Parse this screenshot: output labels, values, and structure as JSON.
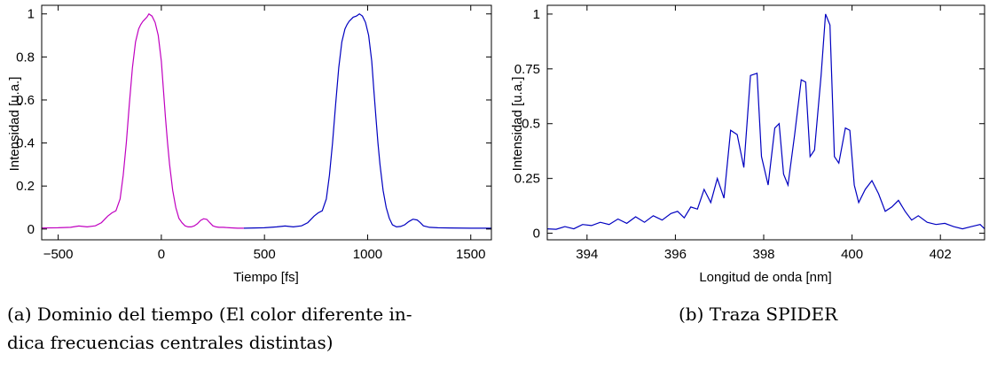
{
  "chart_data": [
    {
      "type": "line",
      "xlabel": "Tiempo [fs]",
      "ylabel": "Intensidad [u.a.]",
      "xlim": [
        -580,
        1600
      ],
      "ylim": [
        -0.05,
        1.04
      ],
      "xticks": [
        -500,
        0,
        500,
        1000,
        1500
      ],
      "xtick_labels": [
        "−500",
        "0",
        "500",
        "1000",
        "1500"
      ],
      "yticks": [
        0,
        0.2,
        0.4,
        0.6,
        0.8,
        1
      ],
      "ytick_labels": [
        "0",
        "0.2",
        "0.4",
        "0.6",
        "0.8",
        "1"
      ],
      "grid": false,
      "series": [
        {
          "color": "#c000c0",
          "x": [
            -580,
            -500,
            -440,
            -400,
            -360,
            -320,
            -290,
            -260,
            -240,
            -220,
            -200,
            -185,
            -170,
            -155,
            -140,
            -125,
            -110,
            -100,
            -90,
            -80,
            -70,
            -60,
            -45,
            -30,
            -15,
            0,
            10,
            20,
            30,
            40,
            55,
            70,
            85,
            100,
            115,
            130,
            145,
            160,
            175,
            190,
            205,
            220,
            235,
            250,
            265,
            280,
            300,
            330,
            370,
            400
          ],
          "y": [
            0.005,
            0.006,
            0.008,
            0.014,
            0.01,
            0.015,
            0.03,
            0.06,
            0.075,
            0.085,
            0.14,
            0.25,
            0.4,
            0.58,
            0.75,
            0.87,
            0.93,
            0.95,
            0.965,
            0.975,
            0.985,
            1.0,
            0.99,
            0.96,
            0.9,
            0.78,
            0.65,
            0.52,
            0.4,
            0.3,
            0.18,
            0.1,
            0.05,
            0.03,
            0.015,
            0.01,
            0.01,
            0.015,
            0.025,
            0.04,
            0.048,
            0.045,
            0.03,
            0.015,
            0.01,
            0.008,
            0.008,
            0.006,
            0.004,
            0.004
          ]
        },
        {
          "color": "#0000c0",
          "x": [
            400,
            500,
            560,
            600,
            640,
            680,
            710,
            740,
            760,
            780,
            800,
            815,
            830,
            845,
            860,
            875,
            890,
            900,
            910,
            920,
            930,
            945,
            960,
            975,
            990,
            1005,
            1020,
            1030,
            1040,
            1050,
            1060,
            1075,
            1090,
            1105,
            1120,
            1140,
            1160,
            1180,
            1200,
            1220,
            1240,
            1255,
            1270,
            1300,
            1340,
            1400,
            1500,
            1600
          ],
          "y": [
            0.004,
            0.006,
            0.01,
            0.014,
            0.01,
            0.015,
            0.03,
            0.06,
            0.075,
            0.085,
            0.14,
            0.25,
            0.4,
            0.58,
            0.75,
            0.87,
            0.93,
            0.95,
            0.965,
            0.975,
            0.985,
            0.99,
            1.0,
            0.99,
            0.96,
            0.9,
            0.78,
            0.65,
            0.52,
            0.4,
            0.3,
            0.18,
            0.1,
            0.05,
            0.02,
            0.01,
            0.012,
            0.02,
            0.035,
            0.046,
            0.042,
            0.03,
            0.015,
            0.008,
            0.006,
            0.005,
            0.004,
            0.004
          ]
        }
      ]
    },
    {
      "type": "line",
      "xlabel": "Longitud de onda [nm]",
      "ylabel": "Intensidad [u.a.]",
      "xlim": [
        393.1,
        403.0
      ],
      "ylim": [
        -0.03,
        1.04
      ],
      "xticks": [
        394,
        396,
        398,
        400,
        402
      ],
      "xtick_labels": [
        "394",
        "396",
        "398",
        "400",
        "402"
      ],
      "yticks": [
        0,
        0.25,
        0.5,
        0.75,
        1
      ],
      "ytick_labels": [
        "0",
        "0.25",
        "0.5",
        "0.75",
        "1"
      ],
      "grid": false,
      "series": [
        {
          "color": "#0000c0",
          "x": [
            393.1,
            393.3,
            393.5,
            393.7,
            393.9,
            394.1,
            394.3,
            394.5,
            394.7,
            394.9,
            395.1,
            395.3,
            395.5,
            395.7,
            395.9,
            396.05,
            396.2,
            396.35,
            396.5,
            396.65,
            396.8,
            396.95,
            397.1,
            397.25,
            397.4,
            397.55,
            397.7,
            397.85,
            397.95,
            398.1,
            398.25,
            398.35,
            398.45,
            398.55,
            398.7,
            398.85,
            398.95,
            399.05,
            399.15,
            399.3,
            399.4,
            399.5,
            399.6,
            399.7,
            399.85,
            399.95,
            400.05,
            400.15,
            400.3,
            400.45,
            400.6,
            400.75,
            400.9,
            401.05,
            401.2,
            401.35,
            401.5,
            401.7,
            401.9,
            402.1,
            402.3,
            402.5,
            402.7,
            402.9,
            403.0
          ],
          "y": [
            0.02,
            0.018,
            0.03,
            0.02,
            0.04,
            0.035,
            0.05,
            0.04,
            0.065,
            0.045,
            0.075,
            0.05,
            0.08,
            0.06,
            0.09,
            0.1,
            0.07,
            0.12,
            0.11,
            0.2,
            0.14,
            0.25,
            0.16,
            0.47,
            0.45,
            0.3,
            0.72,
            0.73,
            0.35,
            0.22,
            0.48,
            0.5,
            0.27,
            0.22,
            0.45,
            0.7,
            0.69,
            0.35,
            0.38,
            0.72,
            1.0,
            0.95,
            0.35,
            0.32,
            0.48,
            0.47,
            0.22,
            0.14,
            0.2,
            0.24,
            0.18,
            0.1,
            0.12,
            0.15,
            0.1,
            0.06,
            0.08,
            0.05,
            0.04,
            0.045,
            0.03,
            0.02,
            0.03,
            0.04,
            0.02
          ]
        }
      ]
    }
  ],
  "captions": [
    "(a) Dominio del tiempo (El color diferente in-",
    "dica frecuencias centrales distintas)",
    "(b) Traza SPIDER"
  ]
}
